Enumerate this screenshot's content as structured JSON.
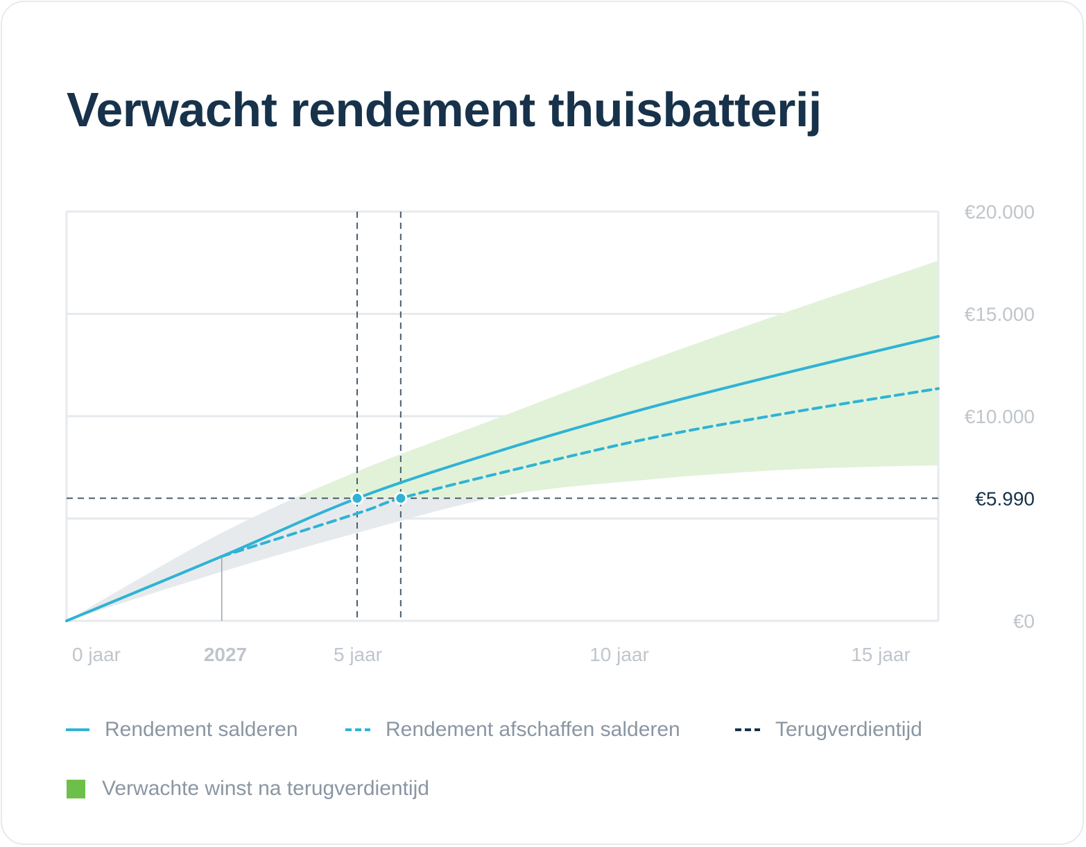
{
  "title": "Verwacht rendement thuisbatterij",
  "chart_data": {
    "type": "line",
    "title": "Verwacht rendement thuisbatterij",
    "xlim": [
      0,
      15
    ],
    "ylim": [
      0,
      20000
    ],
    "grid": true,
    "y_ticks": [
      {
        "value": 0,
        "label": "€0"
      },
      {
        "value": 5000,
        "label": ""
      },
      {
        "value": 10000,
        "label": "€10.000"
      },
      {
        "value": 15000,
        "label": "€15.000"
      },
      {
        "value": 20000,
        "label": "€20.000"
      }
    ],
    "x_ticks": [
      {
        "value": 0,
        "label": "0 jaar"
      },
      {
        "value": 2.67,
        "label": "2027",
        "bold": true
      },
      {
        "value": 5,
        "label": "5 jaar"
      },
      {
        "value": 10,
        "label": "10 jaar"
      },
      {
        "value": 15,
        "label": "15 jaar"
      }
    ],
    "payback": {
      "value": 5990,
      "label": "€5.990",
      "years": [
        5,
        5.75
      ]
    },
    "series": [
      {
        "name": "Rendement salderen",
        "style": "solid",
        "color": "#2fb3d4",
        "x": [
          0,
          2.67,
          5,
          7.5,
          10,
          12.5,
          15
        ],
        "y": [
          0,
          3150,
          5990,
          8350,
          10400,
          12200,
          13900
        ]
      },
      {
        "name": "Rendement afschaffen salderen",
        "style": "dashed",
        "color": "#2fb3d4",
        "x": [
          2.67,
          5,
          5.75,
          7.5,
          10,
          12.5,
          15
        ],
        "y": [
          3150,
          5250,
          5990,
          7250,
          8900,
          10200,
          11350
        ]
      }
    ],
    "band": {
      "name": "Verwachte winst na terugverdientijd",
      "x": [
        0,
        2.67,
        5,
        7.5,
        10,
        12.5,
        15
      ],
      "upper": [
        0,
        4300,
        7300,
        10000,
        12700,
        15200,
        17600
      ],
      "lower": [
        0,
        2400,
        4300,
        6100,
        6900,
        7400,
        7600
      ],
      "color_above": "#e1f2d9",
      "color_below": "#e7eaed"
    },
    "legend": [
      {
        "label": "Rendement salderen",
        "style": "solid",
        "color": "#2fb3d4"
      },
      {
        "label": "Rendement afschaffen salderen",
        "style": "dashed",
        "color": "#2fb3d4"
      },
      {
        "label": "Terugverdientijd",
        "style": "dashed",
        "color": "#17324a"
      },
      {
        "label": "Verwachte winst na terugverdientijd",
        "style": "square",
        "color": "#6cc04a"
      }
    ]
  }
}
